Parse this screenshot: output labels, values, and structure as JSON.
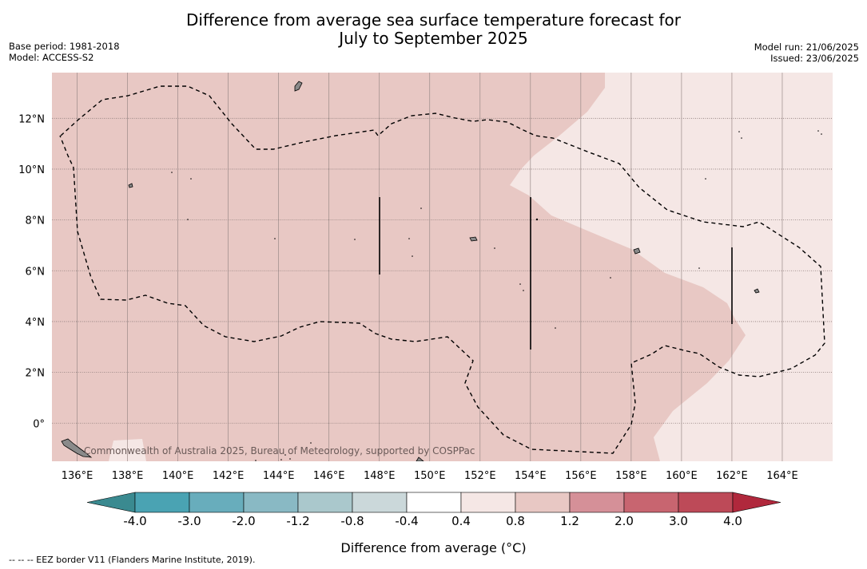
{
  "header": {
    "title_line1": "Difference from average sea surface temperature forecast for",
    "title_line2": "July to September 2025",
    "base_period": "Base period: 1981-2018",
    "model": "Model: ACCESS-S2",
    "model_run": "Model run: 21/06/2025",
    "issued": "Issued: 23/06/2025"
  },
  "map": {
    "lon_range": [
      135.0,
      166.0
    ],
    "lat_range": [
      -1.5,
      13.8
    ],
    "x_ticks": [
      "136°E",
      "138°E",
      "140°E",
      "142°E",
      "144°E",
      "146°E",
      "148°E",
      "150°E",
      "152°E",
      "154°E",
      "156°E",
      "158°E",
      "160°E",
      "162°E",
      "164°E"
    ],
    "y_ticks": [
      "12°N",
      "10°N",
      "8°N",
      "6°N",
      "4°N",
      "2°N",
      "0°"
    ],
    "base_anomaly_color": "#e8c8c4",
    "warm_light_color": "#f5e7e5",
    "copyright": "Commonwealth of Australia 2025, Bureau of Meteorology, supported by COSPPac"
  },
  "colorbar": {
    "labels": [
      "-4.0",
      "-3.0",
      "-2.0",
      "-1.2",
      "-0.8",
      "-0.4",
      "0.4",
      "0.8",
      "1.2",
      "2.0",
      "3.0",
      "4.0"
    ],
    "colors": [
      "#4aa3b3",
      "#68adbc",
      "#89b9c4",
      "#aac8cc",
      "#cbd8da",
      "#ffffff",
      "#f5e7e5",
      "#e8c8c4",
      "#d59098",
      "#c86570",
      "#bd4a58"
    ],
    "low_extend_color": "#3a8a90",
    "high_extend_color": "#b0283c",
    "label": "Difference from average (°C)"
  },
  "footer": {
    "eez_note": "--  --  -- EEZ border V11 (Flanders Marine Institute, 2019)."
  }
}
